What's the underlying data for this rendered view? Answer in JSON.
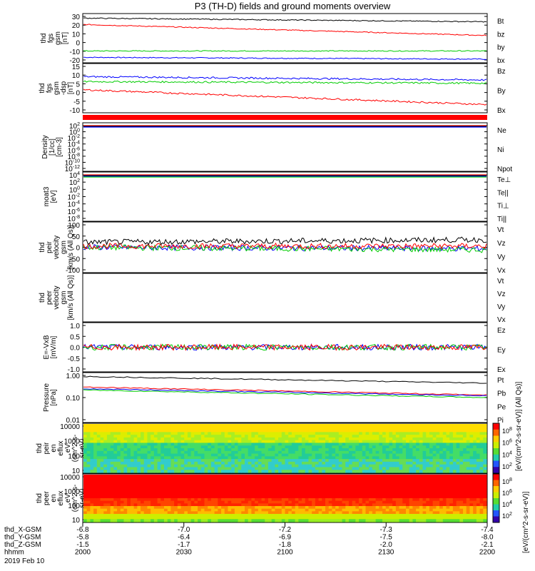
{
  "chart_data": {
    "type": "line",
    "title": "P3 (TH-D) fields and ground moments overview",
    "date_label": "2019 Feb 10",
    "colorbar_label": "[eV/(cm^2-s-sr-eV)]",
    "colorbar2_label": "[eV/(cm^2-s-sr-eV)] (All Qs)]",
    "time_axis": {
      "rows": [
        {
          "name": "thd_X-GSM",
          "values": [
            "-6.8",
            "-7.0",
            "-7.2",
            "-7.3",
            "-7.4"
          ]
        },
        {
          "name": "thd_Y-GSM",
          "values": [
            "-5.8",
            "-6.4",
            "-6.9",
            "-7.5",
            "-8.0"
          ]
        },
        {
          "name": "thd_Z-GSM",
          "values": [
            "-1.5",
            "-1.7",
            "-1.8",
            "-2.0",
            "-2.1"
          ]
        },
        {
          "name": "hhmm",
          "values": [
            "2000",
            "2030",
            "2100",
            "2130",
            "2200"
          ]
        }
      ]
    },
    "panels": [
      {
        "id": "fgs",
        "ylabel": [
          "thd",
          "fgs",
          "gsm",
          "[nT]"
        ],
        "yticks": [
          "30",
          "20",
          "10",
          "0",
          "-10",
          "-20"
        ],
        "ylim": [
          -22,
          32
        ],
        "series": [
          {
            "name": "Bt",
            "color": "#000000",
            "start": 27,
            "end": 23
          },
          {
            "name": "bz",
            "color": "#ff0000",
            "start": 20,
            "end": 8
          },
          {
            "name": "by",
            "color": "#00cc00",
            "start": -9,
            "end": -9
          },
          {
            "name": "bx",
            "color": "#0000ff",
            "start": -16,
            "end": -18
          }
        ]
      },
      {
        "id": "fgs_dsl",
        "ylabel": [
          "thd",
          "fgs",
          "gsm",
          "-dsp",
          "[nT]"
        ],
        "yticks": [
          "15",
          "10",
          "5",
          "0",
          "-5",
          "-10"
        ],
        "ylim": [
          -14,
          16
        ],
        "series": [
          {
            "name": "Bz",
            "color": "#ff0000",
            "start": 0,
            "end": -9
          },
          {
            "name": "By",
            "color": "#00cc00",
            "start": 5,
            "end": 4
          },
          {
            "name": "Bx",
            "color": "#0000ff",
            "start": 8,
            "end": 6
          }
        ]
      },
      {
        "id": "density",
        "ylabel": [
          "Density",
          "[1/cc]",
          "[cm-3]"
        ],
        "yticks": [
          "10^2",
          "10^0",
          "10^-2",
          "10^-4",
          "10^-6",
          "10^-8",
          "10^-10",
          "10^-12"
        ],
        "series": [
          {
            "name": "Ne",
            "color": "#ff0000"
          },
          {
            "name": "Ni",
            "color": "#000000"
          },
          {
            "name": "Npot",
            "color": "#0000ff"
          }
        ]
      },
      {
        "id": "temp",
        "ylabel": [
          "moat3",
          "[eV]"
        ],
        "yticks": [
          "10^4",
          "10^2",
          "10^0",
          "10^-2",
          "10^-4",
          "10^-6",
          "10^-8"
        ],
        "series": [
          {
            "name": "Te⊥",
            "color": "#ff0000"
          },
          {
            "name": "Te||",
            "color": "#000000"
          },
          {
            "name": "Ti⊥",
            "color": "#0000ff"
          },
          {
            "name": "Ti||",
            "color": "#00cc00"
          }
        ]
      },
      {
        "id": "vel_i",
        "ylabel": [
          "thd",
          "peir",
          "velocity",
          "gsm",
          "[km/s (All Qs)]"
        ],
        "yticks": [
          "100",
          "50",
          "0",
          "-50",
          "-100"
        ],
        "ylim": [
          -100,
          100
        ],
        "series": [
          {
            "name": "Vt",
            "color": "#000000",
            "start": 20,
            "end": 30
          },
          {
            "name": "Vz",
            "color": "#ff0000",
            "start": 5,
            "end": 5
          },
          {
            "name": "Vy",
            "color": "#00cc00",
            "start": 0,
            "end": -10
          },
          {
            "name": "Vx",
            "color": "#0000ff",
            "start": 0,
            "end": -5
          }
        ]
      },
      {
        "id": "vel_e",
        "ylabel": [
          "thd",
          "peer",
          "velocity",
          "gsm",
          "[km/s (All Qs)]"
        ],
        "yticks": [],
        "series": [
          {
            "name": "Vt",
            "color": "#000000"
          },
          {
            "name": "Vz",
            "color": "#ff0000"
          },
          {
            "name": "Vy",
            "color": "#00cc00"
          },
          {
            "name": "Vx",
            "color": "#0000ff"
          }
        ]
      },
      {
        "id": "efield",
        "ylabel": [
          "E=-VxB",
          "[mV/m]"
        ],
        "yticks": [
          "1.0",
          "0.5",
          "0.0",
          "-0.5",
          "-1.0"
        ],
        "ylim": [
          -1.2,
          1.2
        ],
        "series": [
          {
            "name": "Ez",
            "color": "#ff0000",
            "start": 0,
            "end": 0
          },
          {
            "name": "Ey",
            "color": "#00cc00",
            "start": 0,
            "end": 0
          },
          {
            "name": "Ex",
            "color": "#0000ff",
            "start": 0,
            "end": 0
          }
        ]
      },
      {
        "id": "pressure",
        "ylabel": [
          "Pressure",
          "[nPa]"
        ],
        "yticks": [
          "1.00",
          "0.10",
          "0.01"
        ],
        "series": [
          {
            "name": "Pt",
            "color": "#000000",
            "start": 0.9,
            "end": 0.45
          },
          {
            "name": "Pb",
            "color": "#ff0000",
            "start": 0.3,
            "end": 0.13
          },
          {
            "name": "Pe",
            "color": "#00cc00",
            "start": 0.22,
            "end": 0.1
          },
          {
            "name": "Pi",
            "color": "#0000ff",
            "start": 0.25,
            "end": 0.12
          }
        ]
      },
      {
        "id": "spec_i",
        "ylabel": [
          "thd",
          "peir",
          "en",
          "eflux",
          "eV",
          "(cm^2-s-",
          "sr-eV)"
        ],
        "yticks": [
          "10000",
          "1000",
          "100",
          "10"
        ]
      },
      {
        "id": "spec_e",
        "ylabel": [
          "thd",
          "peer",
          "en",
          "eflux",
          "eV",
          "(cm^2-s-",
          "sr-eV)"
        ],
        "yticks": [
          "10000",
          "1000",
          "100",
          "10"
        ]
      }
    ],
    "colorbar_ticks": [
      "10^8",
      "10^6",
      "10^4",
      "10^2"
    ]
  }
}
